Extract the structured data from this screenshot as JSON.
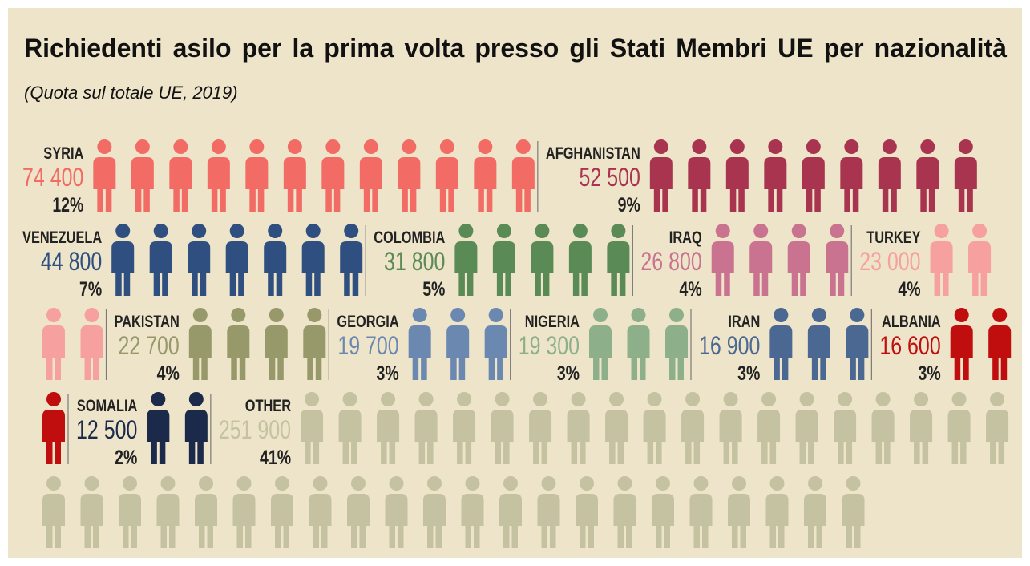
{
  "chart_data": {
    "type": "pictogram",
    "title": "Richiedenti asilo per la prima volta presso gli Stati Membri UE per nazionalità",
    "subtitle": "(Quota sul totale UE, 2019)",
    "categories": [
      "SYRIA",
      "AFGHANISTAN",
      "VENEZUELA",
      "COLOMBIA",
      "IRAQ",
      "TURKEY",
      "PAKISTAN",
      "GEORGIA",
      "NIGERIA",
      "IRAN",
      "ALBANIA",
      "SOMALIA",
      "OTHER"
    ],
    "values": [
      74400,
      52500,
      44800,
      31800,
      26800,
      23000,
      22700,
      19700,
      19300,
      16900,
      16600,
      12500,
      251900
    ],
    "value_labels": [
      "74 400",
      "52 500",
      "44 800",
      "31 800",
      "26 800",
      "23 000",
      "22 700",
      "19 700",
      "19 300",
      "16 900",
      "16 600",
      "12 500",
      "251 900"
    ],
    "shares": [
      12,
      9,
      7,
      5,
      4,
      4,
      4,
      3,
      3,
      3,
      3,
      2,
      41
    ],
    "share_labels": [
      "12%",
      "9%",
      "7%",
      "5%",
      "4%",
      "4%",
      "4%",
      "3%",
      "3%",
      "3%",
      "3%",
      "2%",
      "41%"
    ],
    "colors": [
      "#f26b64",
      "#a8344f",
      "#2e4f7f",
      "#5a8a55",
      "#c97390",
      "#f6a0a0",
      "#97996a",
      "#6b88b0",
      "#8db08a",
      "#4a6891",
      "#c00d0d",
      "#1b2a4a",
      "#c4c2a0"
    ]
  }
}
